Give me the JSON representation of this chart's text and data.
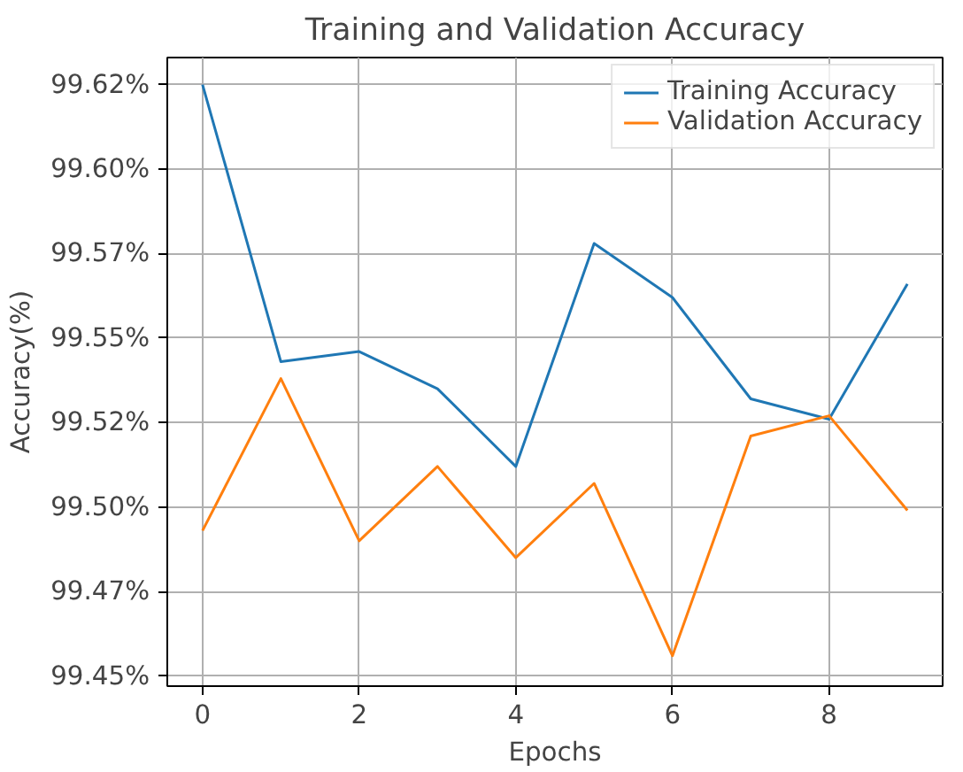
{
  "chart_data": {
    "type": "line",
    "title": "Training and Validation Accuracy",
    "xlabel": "Epochs",
    "ylabel": "Accuracy(%)",
    "x": [
      0,
      1,
      2,
      3,
      4,
      5,
      6,
      7,
      8,
      9
    ],
    "series": [
      {
        "name": "Training Accuracy",
        "color": "#1f77b4",
        "values": [
          99.625,
          99.543,
          99.546,
          99.535,
          99.512,
          99.578,
          99.562,
          99.532,
          99.526,
          99.566
        ]
      },
      {
        "name": "Validation Accuracy",
        "color": "#ff7f0e",
        "values": [
          99.493,
          99.538,
          99.49,
          99.512,
          99.485,
          99.507,
          99.456,
          99.521,
          99.527,
          99.499
        ]
      }
    ],
    "xlim": [
      -0.45,
      9.45
    ],
    "xticks": [
      0,
      2,
      4,
      6,
      8
    ],
    "ylim": [
      99.447,
      99.633
    ],
    "yticks": [
      {
        "value": 99.45,
        "label": "99.45%"
      },
      {
        "value": 99.475,
        "label": "99.47%"
      },
      {
        "value": 99.5,
        "label": "99.50%"
      },
      {
        "value": 99.525,
        "label": "99.52%"
      },
      {
        "value": 99.55,
        "label": "99.55%"
      },
      {
        "value": 99.575,
        "label": "99.57%"
      },
      {
        "value": 99.6,
        "label": "99.60%"
      },
      {
        "value": 99.625,
        "label": "99.62%"
      }
    ],
    "grid": true,
    "legend": "top right",
    "line_style": "solid",
    "marker": "none"
  }
}
